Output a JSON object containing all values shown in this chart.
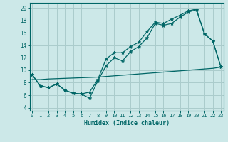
{
  "xlabel": "Humidex (Indice chaleur)",
  "bg_color": "#cce8e8",
  "grid_color": "#aacccc",
  "line_color": "#006666",
  "x_ticks": [
    0,
    1,
    2,
    3,
    4,
    5,
    6,
    7,
    8,
    9,
    10,
    11,
    12,
    13,
    14,
    15,
    16,
    17,
    18,
    19,
    20,
    21,
    22,
    23
  ],
  "y_ticks": [
    4,
    6,
    8,
    10,
    12,
    14,
    16,
    18,
    20
  ],
  "xlim": [
    -0.3,
    23.3
  ],
  "ylim": [
    3.5,
    20.8
  ],
  "series": [
    {
      "x": [
        0,
        1,
        2,
        3,
        4,
        5,
        6,
        7,
        8,
        9,
        10,
        11,
        12,
        13,
        14,
        15,
        16,
        17,
        18,
        19,
        20,
        21,
        22,
        23
      ],
      "y": [
        9.3,
        7.5,
        7.2,
        7.8,
        6.8,
        6.3,
        6.2,
        5.5,
        8.3,
        10.7,
        12.0,
        11.5,
        13.0,
        13.8,
        15.2,
        17.5,
        17.2,
        17.5,
        18.5,
        19.3,
        19.7,
        15.8,
        14.7,
        10.5
      ],
      "marker": true
    },
    {
      "x": [
        0,
        1,
        2,
        3,
        4,
        5,
        6,
        7,
        8,
        9,
        10,
        11,
        12,
        13,
        14,
        15,
        16,
        17,
        18,
        19,
        20,
        21,
        22,
        23
      ],
      "y": [
        9.3,
        7.5,
        7.2,
        7.8,
        6.8,
        6.3,
        6.2,
        6.5,
        8.5,
        11.8,
        12.8,
        12.8,
        13.8,
        14.5,
        16.2,
        17.7,
        17.5,
        18.2,
        18.8,
        19.5,
        19.8,
        15.8,
        14.7,
        10.5
      ],
      "marker": true
    },
    {
      "x": [
        0,
        1,
        2,
        3,
        4,
        5,
        6,
        7,
        8,
        9,
        10,
        11,
        12,
        13,
        14,
        15,
        16,
        17,
        18,
        19,
        20,
        21,
        22,
        23
      ],
      "y": [
        8.5,
        8.5,
        8.6,
        8.65,
        8.7,
        8.75,
        8.8,
        8.85,
        8.9,
        9.0,
        9.1,
        9.2,
        9.3,
        9.4,
        9.5,
        9.6,
        9.7,
        9.8,
        9.9,
        10.0,
        10.1,
        10.2,
        10.3,
        10.5
      ],
      "marker": false
    }
  ]
}
